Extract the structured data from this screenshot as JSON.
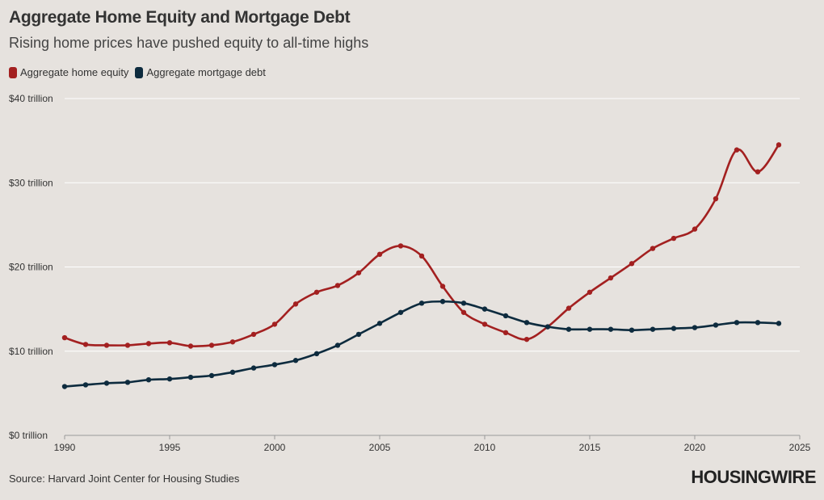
{
  "title": "Aggregate Home Equity and Mortgage Debt",
  "subtitle": "Rising home prices have pushed equity to all-time highs",
  "source": "Source: Harvard Joint Center for Housing Studies",
  "brand": "HOUSINGWIRE",
  "colors": {
    "equity": "#a32020",
    "debt": "#0d2b3e",
    "grid": "#ffffff",
    "background": "#e6e2de"
  },
  "chart_data": {
    "type": "line",
    "title": "Aggregate Home Equity and Mortgage Debt",
    "xlabel": "",
    "ylabel": "",
    "xlim": [
      1990,
      2025
    ],
    "ylim": [
      0,
      40
    ],
    "x_ticks": [
      1990,
      1995,
      2000,
      2005,
      2010,
      2015,
      2020,
      2025
    ],
    "y_ticks": [
      0,
      10,
      20,
      30,
      40
    ],
    "y_tick_labels": [
      "$0 trillion",
      "$10 trillion",
      "$20 trillion",
      "$30 trillion",
      "$40 trillion"
    ],
    "legend": "top-left",
    "x": [
      1990,
      1991,
      1992,
      1993,
      1994,
      1995,
      1996,
      1997,
      1998,
      1999,
      2000,
      2001,
      2002,
      2003,
      2004,
      2005,
      2006,
      2007,
      2008,
      2009,
      2010,
      2011,
      2012,
      2013,
      2014,
      2015,
      2016,
      2017,
      2018,
      2019,
      2020,
      2021,
      2022,
      2023,
      2024
    ],
    "series": [
      {
        "name": "Aggregate home equity",
        "color": "#a32020",
        "values": [
          11.6,
          10.8,
          10.7,
          10.7,
          10.9,
          11.0,
          10.6,
          10.7,
          11.1,
          12.0,
          13.2,
          15.6,
          17.0,
          17.8,
          19.3,
          21.5,
          22.5,
          21.3,
          17.7,
          14.6,
          13.2,
          12.2,
          11.4,
          12.9,
          15.1,
          17.0,
          18.7,
          20.4,
          22.2,
          23.4,
          24.5,
          28.1,
          33.9,
          31.3,
          34.5
        ]
      },
      {
        "name": "Aggregate mortgage debt",
        "color": "#0d2b3e",
        "values": [
          5.8,
          6.0,
          6.2,
          6.3,
          6.6,
          6.7,
          6.9,
          7.1,
          7.5,
          8.0,
          8.4,
          8.9,
          9.7,
          10.7,
          12.0,
          13.3,
          14.6,
          15.7,
          15.9,
          15.7,
          15.0,
          14.2,
          13.4,
          12.9,
          12.6,
          12.6,
          12.6,
          12.5,
          12.6,
          12.7,
          12.8,
          13.1,
          13.4,
          13.4,
          13.3
        ]
      }
    ]
  }
}
